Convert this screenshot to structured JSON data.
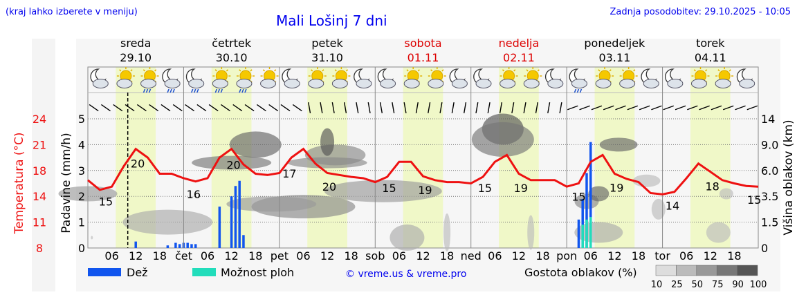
{
  "header": {
    "left_note": "(kraj lahko izberete v meniju)",
    "title": "Mali Lošinj 7 dni",
    "updated": "Zadnja posodobitev: 29.10.2025 - 10:05"
  },
  "days": [
    {
      "name": "sreda",
      "date": "29.10",
      "weekend": false
    },
    {
      "name": "četrtek",
      "date": "30.10",
      "weekend": false
    },
    {
      "name": "petek",
      "date": "31.10",
      "weekend": false
    },
    {
      "name": "sobota",
      "date": "01.11",
      "weekend": true
    },
    {
      "name": "nedelja",
      "date": "02.11",
      "weekend": true
    },
    {
      "name": "ponedeljek",
      "date": "03.11",
      "weekend": false
    },
    {
      "name": "torek",
      "date": "04.11",
      "weekend": false
    }
  ],
  "colors": {
    "temperature": "#ee1111",
    "rain": "#1155ee",
    "showers": "#22ddbb",
    "weekend": "#dd0000",
    "daylight": "#f0f8c8",
    "title": "#0000ee"
  },
  "chart_data": {
    "type": "line",
    "title": "Mali Lošinj 7 dni",
    "time_axis": {
      "unit": "hours since 29.10 00:00",
      "start": 0,
      "end": 168,
      "tick_labels": [
        "06",
        "12",
        "18",
        "čet",
        "06",
        "12",
        "18",
        "pet",
        "06",
        "12",
        "18",
        "sob",
        "06",
        "12",
        "18",
        "ned",
        "06",
        "12",
        "18",
        "pon",
        "06",
        "12",
        "18",
        "tor",
        "06",
        "12",
        "18"
      ]
    },
    "left_axes": {
      "temperature": {
        "label": "Temperatura (°C)",
        "ticks": [
          "8",
          "11",
          "14",
          "18",
          "21",
          "24"
        ],
        "range": [
          8,
          24
        ]
      },
      "precipitation": {
        "label": "Padavine (mm/h)",
        "ticks": [
          "0",
          "1",
          "2",
          "3",
          "4",
          "5"
        ],
        "range": [
          0,
          5
        ]
      }
    },
    "right_axis": {
      "label": "Višina oblakov (km)",
      "ticks": [
        "0",
        "1.5",
        "3.5",
        "6.0",
        "9.0",
        "14"
      ]
    },
    "temperature_series": {
      "name": "Temperatura",
      "x": [
        0,
        3,
        6,
        9,
        12,
        15,
        18,
        21,
        24,
        27,
        30,
        33,
        36,
        39,
        42,
        45,
        48,
        51,
        54,
        57,
        60,
        63,
        66,
        69,
        72,
        75,
        78,
        81,
        84,
        87,
        90,
        93,
        96,
        99,
        102,
        105,
        108,
        111,
        114,
        117,
        120,
        123,
        126,
        129,
        132,
        135,
        138,
        141,
        144,
        147,
        150,
        153,
        156,
        159,
        162,
        165,
        168
      ],
      "y": [
        16.5,
        15,
        15.5,
        18.5,
        20.5,
        19.5,
        17.5,
        17.5,
        16.8,
        16.3,
        16.8,
        19.5,
        20.5,
        18.7,
        17.5,
        17.3,
        17.6,
        19.5,
        20.5,
        18.8,
        17.6,
        17.3,
        17,
        16.8,
        16.2,
        17,
        19,
        19,
        17.1,
        16.5,
        16.2,
        16.2,
        16,
        17,
        19,
        19.8,
        17.5,
        16.5,
        16.5,
        16.5,
        15.5,
        16,
        19,
        19.8,
        17.5,
        16.7,
        16.2,
        14.5,
        14.3,
        14.7,
        16.8,
        18.8,
        17.8,
        16.5,
        16,
        15.6,
        15.5
      ]
    },
    "temperature_labels": [
      {
        "x": 4.5,
        "text": "15"
      },
      {
        "x": 12.5,
        "text": "20"
      },
      {
        "x": 26.5,
        "text": "16"
      },
      {
        "x": 36.5,
        "text": "20"
      },
      {
        "x": 50.5,
        "text": "17"
      },
      {
        "x": 60.5,
        "text": "20"
      },
      {
        "x": 75.5,
        "text": "15"
      },
      {
        "x": 84.5,
        "text": "19"
      },
      {
        "x": 99.5,
        "text": "15"
      },
      {
        "x": 108.5,
        "text": "19"
      },
      {
        "x": 123,
        "text": "15"
      },
      {
        "x": 132.5,
        "text": "19"
      },
      {
        "x": 146.5,
        "text": "14"
      },
      {
        "x": 156.5,
        "text": "18"
      },
      {
        "x": 167,
        "text": "15"
      }
    ],
    "precipitation_series": [
      {
        "name": "Dež",
        "x": [
          12,
          20,
          22,
          23,
          24,
          25,
          26,
          27,
          33,
          36,
          37,
          38,
          39,
          123,
          124,
          125,
          126
        ],
        "y": [
          0.25,
          0.1,
          0.2,
          0.15,
          0.2,
          0.2,
          0.15,
          0.15,
          1.6,
          2,
          2.4,
          2.6,
          0.5,
          1.1,
          1.9,
          2.9,
          4.1
        ]
      },
      {
        "name": "Možnost ploh",
        "x": [
          124,
          125,
          126
        ],
        "y": [
          0.9,
          1.1,
          1.2
        ]
      }
    ],
    "cloud_density_scale": [
      10,
      25,
      50,
      75,
      90,
      100
    ],
    "cloud_density_label": "Gostota oblakov (%)",
    "now_marker_hour": 10,
    "legend": [
      "Dež",
      "Možnost ploh"
    ]
  },
  "footer": {
    "rain_label": "Dež",
    "showers_label": "Možnost ploh",
    "credit": "© vreme.us & vreme.pro",
    "density_label": "Gostota oblakov (%)",
    "density_ticks": [
      "10",
      "25",
      "50",
      "75",
      "90",
      "100"
    ]
  },
  "icons": [
    "moon-partly-cloudy",
    "sun-cloud",
    "sun-rain",
    "moon-rain",
    "moon-rain",
    "sun-rain",
    "sun-heavy-rain",
    "sun-cloud",
    "moon-cloud",
    "sun-cloud",
    "sun-cloud",
    "moon-cloud",
    "moon-cloud",
    "sun-cloud",
    "sun-cloud",
    "moon-cloud",
    "moon-cloud",
    "sun-cloud",
    "sun-cloud",
    "moon-cloud",
    "moon-rain",
    "sun-cloud",
    "sun-cloud",
    "moon-cloud",
    "moon-cloud",
    "sun-cloud",
    "sun-cloud",
    "moon-cloud"
  ]
}
